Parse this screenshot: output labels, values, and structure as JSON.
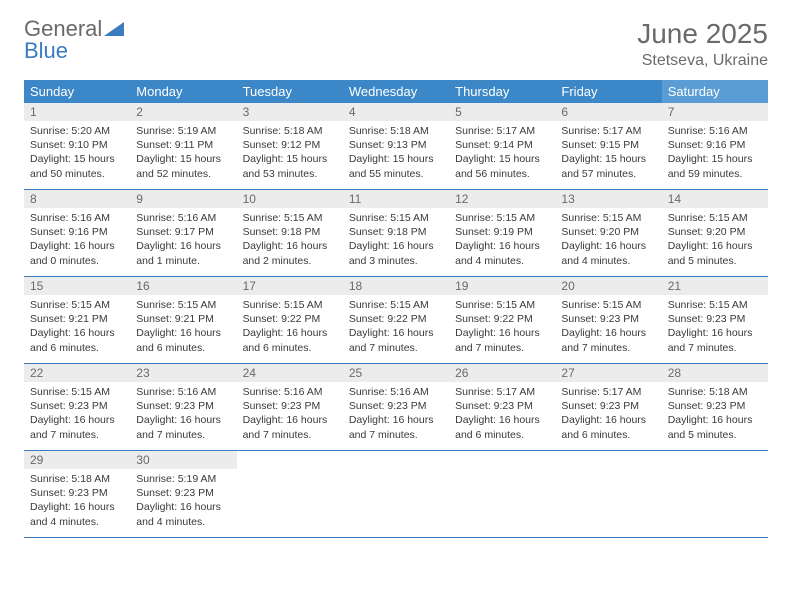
{
  "brand": {
    "word1": "General",
    "word2": "Blue"
  },
  "title": "June 2025",
  "location": "Stetseva, Ukraine",
  "colors": {
    "header_bg": "#3b87c8",
    "header_sat_bg": "#5a9dd4",
    "header_fg": "#ffffff",
    "daynum_bg": "#ececec",
    "rule": "#3b7bbf",
    "text": "#3a3a3a",
    "muted": "#6a6a6a"
  },
  "weekdays": [
    "Sunday",
    "Monday",
    "Tuesday",
    "Wednesday",
    "Thursday",
    "Friday",
    "Saturday"
  ],
  "days": [
    {
      "n": "1",
      "sr": "Sunrise: 5:20 AM",
      "ss": "Sunset: 9:10 PM",
      "dl": "Daylight: 15 hours and 50 minutes."
    },
    {
      "n": "2",
      "sr": "Sunrise: 5:19 AM",
      "ss": "Sunset: 9:11 PM",
      "dl": "Daylight: 15 hours and 52 minutes."
    },
    {
      "n": "3",
      "sr": "Sunrise: 5:18 AM",
      "ss": "Sunset: 9:12 PM",
      "dl": "Daylight: 15 hours and 53 minutes."
    },
    {
      "n": "4",
      "sr": "Sunrise: 5:18 AM",
      "ss": "Sunset: 9:13 PM",
      "dl": "Daylight: 15 hours and 55 minutes."
    },
    {
      "n": "5",
      "sr": "Sunrise: 5:17 AM",
      "ss": "Sunset: 9:14 PM",
      "dl": "Daylight: 15 hours and 56 minutes."
    },
    {
      "n": "6",
      "sr": "Sunrise: 5:17 AM",
      "ss": "Sunset: 9:15 PM",
      "dl": "Daylight: 15 hours and 57 minutes."
    },
    {
      "n": "7",
      "sr": "Sunrise: 5:16 AM",
      "ss": "Sunset: 9:16 PM",
      "dl": "Daylight: 15 hours and 59 minutes."
    },
    {
      "n": "8",
      "sr": "Sunrise: 5:16 AM",
      "ss": "Sunset: 9:16 PM",
      "dl": "Daylight: 16 hours and 0 minutes."
    },
    {
      "n": "9",
      "sr": "Sunrise: 5:16 AM",
      "ss": "Sunset: 9:17 PM",
      "dl": "Daylight: 16 hours and 1 minute."
    },
    {
      "n": "10",
      "sr": "Sunrise: 5:15 AM",
      "ss": "Sunset: 9:18 PM",
      "dl": "Daylight: 16 hours and 2 minutes."
    },
    {
      "n": "11",
      "sr": "Sunrise: 5:15 AM",
      "ss": "Sunset: 9:18 PM",
      "dl": "Daylight: 16 hours and 3 minutes."
    },
    {
      "n": "12",
      "sr": "Sunrise: 5:15 AM",
      "ss": "Sunset: 9:19 PM",
      "dl": "Daylight: 16 hours and 4 minutes."
    },
    {
      "n": "13",
      "sr": "Sunrise: 5:15 AM",
      "ss": "Sunset: 9:20 PM",
      "dl": "Daylight: 16 hours and 4 minutes."
    },
    {
      "n": "14",
      "sr": "Sunrise: 5:15 AM",
      "ss": "Sunset: 9:20 PM",
      "dl": "Daylight: 16 hours and 5 minutes."
    },
    {
      "n": "15",
      "sr": "Sunrise: 5:15 AM",
      "ss": "Sunset: 9:21 PM",
      "dl": "Daylight: 16 hours and 6 minutes."
    },
    {
      "n": "16",
      "sr": "Sunrise: 5:15 AM",
      "ss": "Sunset: 9:21 PM",
      "dl": "Daylight: 16 hours and 6 minutes."
    },
    {
      "n": "17",
      "sr": "Sunrise: 5:15 AM",
      "ss": "Sunset: 9:22 PM",
      "dl": "Daylight: 16 hours and 6 minutes."
    },
    {
      "n": "18",
      "sr": "Sunrise: 5:15 AM",
      "ss": "Sunset: 9:22 PM",
      "dl": "Daylight: 16 hours and 7 minutes."
    },
    {
      "n": "19",
      "sr": "Sunrise: 5:15 AM",
      "ss": "Sunset: 9:22 PM",
      "dl": "Daylight: 16 hours and 7 minutes."
    },
    {
      "n": "20",
      "sr": "Sunrise: 5:15 AM",
      "ss": "Sunset: 9:23 PM",
      "dl": "Daylight: 16 hours and 7 minutes."
    },
    {
      "n": "21",
      "sr": "Sunrise: 5:15 AM",
      "ss": "Sunset: 9:23 PM",
      "dl": "Daylight: 16 hours and 7 minutes."
    },
    {
      "n": "22",
      "sr": "Sunrise: 5:15 AM",
      "ss": "Sunset: 9:23 PM",
      "dl": "Daylight: 16 hours and 7 minutes."
    },
    {
      "n": "23",
      "sr": "Sunrise: 5:16 AM",
      "ss": "Sunset: 9:23 PM",
      "dl": "Daylight: 16 hours and 7 minutes."
    },
    {
      "n": "24",
      "sr": "Sunrise: 5:16 AM",
      "ss": "Sunset: 9:23 PM",
      "dl": "Daylight: 16 hours and 7 minutes."
    },
    {
      "n": "25",
      "sr": "Sunrise: 5:16 AM",
      "ss": "Sunset: 9:23 PM",
      "dl": "Daylight: 16 hours and 7 minutes."
    },
    {
      "n": "26",
      "sr": "Sunrise: 5:17 AM",
      "ss": "Sunset: 9:23 PM",
      "dl": "Daylight: 16 hours and 6 minutes."
    },
    {
      "n": "27",
      "sr": "Sunrise: 5:17 AM",
      "ss": "Sunset: 9:23 PM",
      "dl": "Daylight: 16 hours and 6 minutes."
    },
    {
      "n": "28",
      "sr": "Sunrise: 5:18 AM",
      "ss": "Sunset: 9:23 PM",
      "dl": "Daylight: 16 hours and 5 minutes."
    },
    {
      "n": "29",
      "sr": "Sunrise: 5:18 AM",
      "ss": "Sunset: 9:23 PM",
      "dl": "Daylight: 16 hours and 4 minutes."
    },
    {
      "n": "30",
      "sr": "Sunrise: 5:19 AM",
      "ss": "Sunset: 9:23 PM",
      "dl": "Daylight: 16 hours and 4 minutes."
    }
  ],
  "layout": {
    "first_weekday_index": 0,
    "total_cells": 35
  }
}
